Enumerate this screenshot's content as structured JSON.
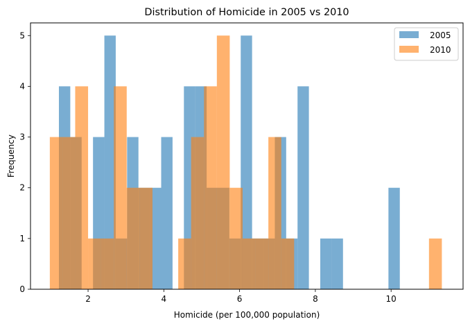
{
  "chart_data": {
    "type": "histogram",
    "title": "Distribution of Homicide in 2005 vs 2010",
    "xlabel": "Homicide (per 100,000 population)",
    "ylabel": "Frequency",
    "xlim": [
      0.48,
      11.9
    ],
    "ylim": [
      0,
      5.25
    ],
    "xticks": [
      2,
      4,
      6,
      8,
      10
    ],
    "yticks": [
      0,
      1,
      2,
      3,
      4,
      5
    ],
    "grid": false,
    "legend_position": "top-right",
    "series": [
      {
        "name": "2005",
        "color": "#1f77b4",
        "alpha": 0.6,
        "bins": [
          {
            "x0": 1.23,
            "x1": 1.53,
            "count": 4
          },
          {
            "x0": 1.53,
            "x1": 1.83,
            "count": 3
          },
          {
            "x0": 1.83,
            "x1": 2.13,
            "count": 0
          },
          {
            "x0": 2.13,
            "x1": 2.43,
            "count": 3
          },
          {
            "x0": 2.43,
            "x1": 2.73,
            "count": 5
          },
          {
            "x0": 2.73,
            "x1": 3.03,
            "count": 1
          },
          {
            "x0": 3.03,
            "x1": 3.33,
            "count": 3
          },
          {
            "x0": 3.33,
            "x1": 3.63,
            "count": 2
          },
          {
            "x0": 3.63,
            "x1": 3.93,
            "count": 2
          },
          {
            "x0": 3.93,
            "x1": 4.23,
            "count": 3
          },
          {
            "x0": 4.23,
            "x1": 4.53,
            "count": 0
          },
          {
            "x0": 4.53,
            "x1": 4.83,
            "count": 4
          },
          {
            "x0": 4.83,
            "x1": 5.13,
            "count": 4
          },
          {
            "x0": 5.13,
            "x1": 5.43,
            "count": 2
          },
          {
            "x0": 5.43,
            "x1": 5.73,
            "count": 2
          },
          {
            "x0": 5.73,
            "x1": 6.03,
            "count": 1
          },
          {
            "x0": 6.03,
            "x1": 6.33,
            "count": 5
          },
          {
            "x0": 6.33,
            "x1": 6.63,
            "count": 1
          },
          {
            "x0": 6.63,
            "x1": 6.93,
            "count": 1
          },
          {
            "x0": 6.93,
            "x1": 7.23,
            "count": 3
          },
          {
            "x0": 7.23,
            "x1": 7.53,
            "count": 1
          },
          {
            "x0": 7.53,
            "x1": 7.83,
            "count": 4
          },
          {
            "x0": 7.83,
            "x1": 8.13,
            "count": 0
          },
          {
            "x0": 8.13,
            "x1": 8.43,
            "count": 1
          },
          {
            "x0": 8.43,
            "x1": 8.73,
            "count": 1
          },
          {
            "x0": 9.93,
            "x1": 10.23,
            "count": 2
          }
        ]
      },
      {
        "name": "2010",
        "color": "#ff7f0e",
        "alpha": 0.6,
        "bins": [
          {
            "x0": 0.99,
            "x1": 1.33,
            "count": 3
          },
          {
            "x0": 1.33,
            "x1": 1.66,
            "count": 3
          },
          {
            "x0": 1.66,
            "x1": 2.0,
            "count": 4
          },
          {
            "x0": 2.0,
            "x1": 2.34,
            "count": 1
          },
          {
            "x0": 2.34,
            "x1": 2.68,
            "count": 1
          },
          {
            "x0": 2.68,
            "x1": 3.02,
            "count": 4
          },
          {
            "x0": 3.02,
            "x1": 3.36,
            "count": 2
          },
          {
            "x0": 3.36,
            "x1": 3.7,
            "count": 2
          },
          {
            "x0": 3.7,
            "x1": 4.04,
            "count": 0
          },
          {
            "x0": 4.04,
            "x1": 4.38,
            "count": 0
          },
          {
            "x0": 4.38,
            "x1": 4.72,
            "count": 1
          },
          {
            "x0": 4.72,
            "x1": 5.06,
            "count": 3
          },
          {
            "x0": 5.06,
            "x1": 5.4,
            "count": 4
          },
          {
            "x0": 5.4,
            "x1": 5.74,
            "count": 5
          },
          {
            "x0": 5.74,
            "x1": 6.08,
            "count": 2
          },
          {
            "x0": 6.08,
            "x1": 6.42,
            "count": 1
          },
          {
            "x0": 6.42,
            "x1": 6.76,
            "count": 1
          },
          {
            "x0": 6.76,
            "x1": 7.1,
            "count": 3
          },
          {
            "x0": 7.1,
            "x1": 7.44,
            "count": 1
          },
          {
            "x0": 11.0,
            "x1": 11.34,
            "count": 1
          }
        ]
      }
    ]
  }
}
